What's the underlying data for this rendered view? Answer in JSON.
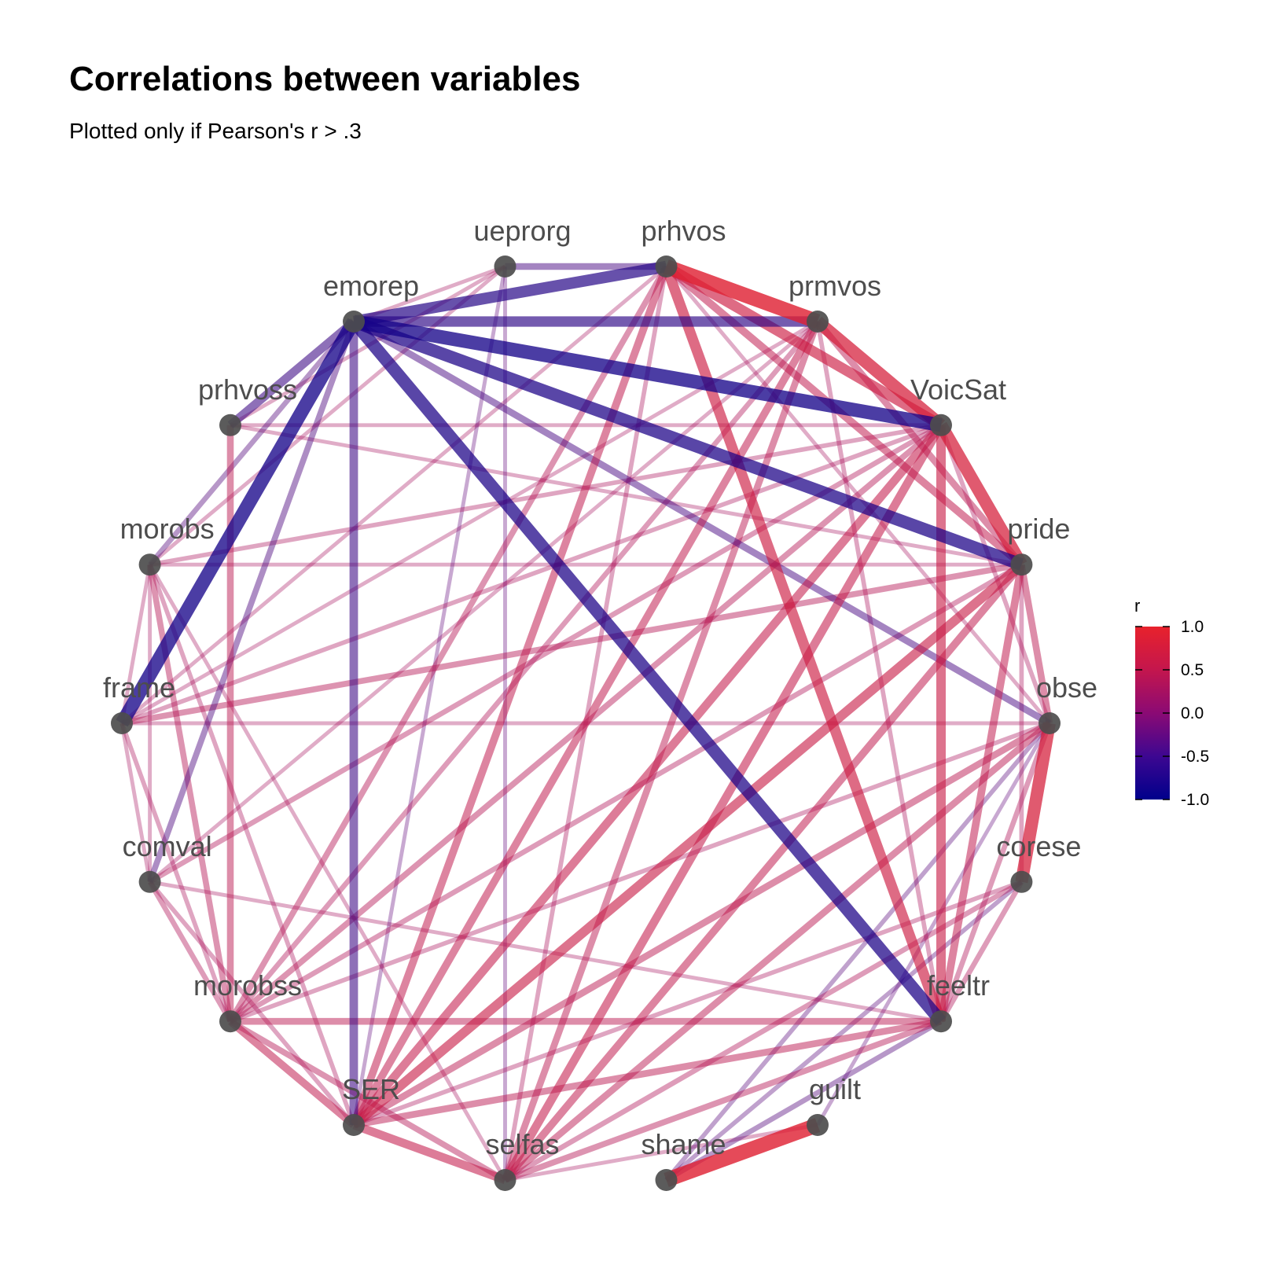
{
  "chart_data": {
    "type": "network",
    "title": "Correlations between variables",
    "subtitle": "Plotted only if Pearson's r > .3",
    "nodes": [
      "prhvos",
      "prmvos",
      "VoicSat",
      "pride",
      "obse",
      "corese",
      "feeltr",
      "guilt",
      "shame",
      "selfas",
      "SER",
      "morobss",
      "comval",
      "frame",
      "morobs",
      "prhvoss",
      "emorep",
      "ueprorg"
    ],
    "edges": [
      {
        "source": "prhvos",
        "target": "prmvos",
        "r": 0.9
      },
      {
        "source": "prhvos",
        "target": "VoicSat",
        "r": 0.7
      },
      {
        "source": "prhvos",
        "target": "pride",
        "r": 0.55
      },
      {
        "source": "prhvos",
        "target": "feeltr",
        "r": 0.7
      },
      {
        "source": "prhvos",
        "target": "SER",
        "r": 0.55
      },
      {
        "source": "prhvos",
        "target": "morobss",
        "r": 0.45
      },
      {
        "source": "prhvos",
        "target": "emorep",
        "r": -0.75
      },
      {
        "source": "prhvos",
        "target": "ueprorg",
        "r": -0.5
      },
      {
        "source": "prhvos",
        "target": "selfas",
        "r": 0.35
      },
      {
        "source": "prhvos",
        "target": "obse",
        "r": 0.3
      },
      {
        "source": "prhvos",
        "target": "frame",
        "r": 0.3
      },
      {
        "source": "prmvos",
        "target": "VoicSat",
        "r": 0.8
      },
      {
        "source": "prmvos",
        "target": "pride",
        "r": 0.5
      },
      {
        "source": "prmvos",
        "target": "SER",
        "r": 0.55
      },
      {
        "source": "prmvos",
        "target": "selfas",
        "r": 0.5
      },
      {
        "source": "prmvos",
        "target": "emorep",
        "r": -0.7
      },
      {
        "source": "prmvos",
        "target": "morobss",
        "r": 0.4
      },
      {
        "source": "prmvos",
        "target": "comval",
        "r": 0.3
      },
      {
        "source": "prmvos",
        "target": "feeltr",
        "r": 0.35
      },
      {
        "source": "prmvos",
        "target": "frame",
        "r": 0.3
      },
      {
        "source": "VoicSat",
        "target": "pride",
        "r": 0.8
      },
      {
        "source": "VoicSat",
        "target": "feeltr",
        "r": 0.65
      },
      {
        "source": "VoicSat",
        "target": "SER",
        "r": 0.6
      },
      {
        "source": "VoicSat",
        "target": "selfas",
        "r": 0.6
      },
      {
        "source": "VoicSat",
        "target": "emorep",
        "r": -0.85
      },
      {
        "source": "VoicSat",
        "target": "morobss",
        "r": 0.45
      },
      {
        "source": "VoicSat",
        "target": "comval",
        "r": 0.4
      },
      {
        "source": "VoicSat",
        "target": "frame",
        "r": 0.35
      },
      {
        "source": "VoicSat",
        "target": "prhvoss",
        "r": 0.3
      },
      {
        "source": "VoicSat",
        "target": "morobs",
        "r": 0.35
      },
      {
        "source": "VoicSat",
        "target": "obse",
        "r": 0.35
      },
      {
        "source": "pride",
        "target": "obse",
        "r": 0.5
      },
      {
        "source": "pride",
        "target": "feeltr",
        "r": 0.55
      },
      {
        "source": "pride",
        "target": "SER",
        "r": 0.65
      },
      {
        "source": "pride",
        "target": "selfas",
        "r": 0.55
      },
      {
        "source": "pride",
        "target": "emorep",
        "r": -0.8
      },
      {
        "source": "pride",
        "target": "frame",
        "r": 0.45
      },
      {
        "source": "pride",
        "target": "morobs",
        "r": 0.3
      },
      {
        "source": "pride",
        "target": "morobss",
        "r": 0.4
      },
      {
        "source": "pride",
        "target": "corese",
        "r": 0.35
      },
      {
        "source": "pride",
        "target": "prhvoss",
        "r": 0.3
      },
      {
        "source": "obse",
        "target": "corese",
        "r": 0.8
      },
      {
        "source": "obse",
        "target": "emorep",
        "r": -0.5
      },
      {
        "source": "obse",
        "target": "SER",
        "r": 0.5
      },
      {
        "source": "obse",
        "target": "selfas",
        "r": 0.5
      },
      {
        "source": "obse",
        "target": "frame",
        "r": 0.3
      },
      {
        "source": "obse",
        "target": "shame",
        "r": -0.35
      },
      {
        "source": "obse",
        "target": "guilt",
        "r": -0.3
      },
      {
        "source": "obse",
        "target": "morobss",
        "r": 0.35
      },
      {
        "source": "obse",
        "target": "feeltr",
        "r": 0.4
      },
      {
        "source": "corese",
        "target": "feeltr",
        "r": 0.4
      },
      {
        "source": "corese",
        "target": "shame",
        "r": -0.35
      },
      {
        "source": "corese",
        "target": "selfas",
        "r": 0.4
      },
      {
        "source": "corese",
        "target": "SER",
        "r": 0.35
      },
      {
        "source": "feeltr",
        "target": "morobss",
        "r": 0.5
      },
      {
        "source": "feeltr",
        "target": "SER",
        "r": 0.5
      },
      {
        "source": "feeltr",
        "target": "selfas",
        "r": 0.45
      },
      {
        "source": "feeltr",
        "target": "emorep",
        "r": -0.8
      },
      {
        "source": "feeltr",
        "target": "shame",
        "r": -0.4
      },
      {
        "source": "feeltr",
        "target": "comval",
        "r": 0.3
      },
      {
        "source": "guilt",
        "target": "shame",
        "r": 0.9
      },
      {
        "source": "guilt",
        "target": "selfas",
        "r": 0.3
      },
      {
        "source": "selfas",
        "target": "SER",
        "r": 0.6
      },
      {
        "source": "selfas",
        "target": "morobss",
        "r": 0.45
      },
      {
        "source": "selfas",
        "target": "ueprorg",
        "r": -0.3
      },
      {
        "source": "selfas",
        "target": "morobs",
        "r": 0.3
      },
      {
        "source": "SER",
        "target": "morobss",
        "r": 0.55
      },
      {
        "source": "SER",
        "target": "emorep",
        "r": -0.6
      },
      {
        "source": "SER",
        "target": "ueprorg",
        "r": -0.3
      },
      {
        "source": "SER",
        "target": "comval",
        "r": 0.35
      },
      {
        "source": "SER",
        "target": "morobs",
        "r": 0.35
      },
      {
        "source": "morobss",
        "target": "comval",
        "r": 0.4
      },
      {
        "source": "morobss",
        "target": "morobs",
        "r": 0.45
      },
      {
        "source": "morobss",
        "target": "prhvoss",
        "r": 0.5
      },
      {
        "source": "morobss",
        "target": "frame",
        "r": 0.35
      },
      {
        "source": "comval",
        "target": "frame",
        "r": 0.3
      },
      {
        "source": "comval",
        "target": "morobs",
        "r": 0.3
      },
      {
        "source": "comval",
        "target": "emorep",
        "r": -0.45
      },
      {
        "source": "frame",
        "target": "morobs",
        "r": 0.3
      },
      {
        "source": "frame",
        "target": "emorep",
        "r": -0.85
      },
      {
        "source": "morobs",
        "target": "emorep",
        "r": -0.4
      },
      {
        "source": "morobs",
        "target": "ueprorg",
        "r": 0.3
      },
      {
        "source": "prhvoss",
        "target": "emorep",
        "r": -0.6
      },
      {
        "source": "prhvoss",
        "target": "ueprorg",
        "r": 0.3
      },
      {
        "source": "emorep",
        "target": "ueprorg",
        "r": 0.3
      }
    ],
    "legend": {
      "title": "r",
      "ticks": [
        "1.0",
        "0.5",
        "0.0",
        "-0.5",
        "-1.0"
      ],
      "range": [
        -1.0,
        1.0
      ],
      "colors": {
        "high": "#e8222c",
        "mid": "#8b0a74",
        "low": "#00008b"
      }
    }
  }
}
